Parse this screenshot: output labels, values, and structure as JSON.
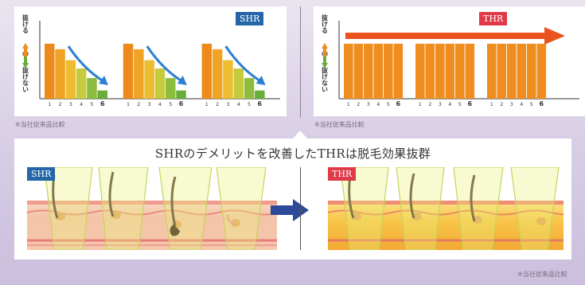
{
  "charts": [
    {
      "type": "bar",
      "label": "SHR",
      "label_color": "#2566a8",
      "y_top": "抜ける",
      "y_mid": "中",
      "y_bottom": "抜けない",
      "groups": [
        {
          "categories": [
            "1",
            "2",
            "3",
            "4",
            "5",
            "6"
          ],
          "values": [
            4,
            3.6,
            2.8,
            2.2,
            1.5,
            0.6
          ]
        },
        {
          "categories": [
            "1",
            "2",
            "3",
            "4",
            "5",
            "6"
          ],
          "values": [
            4,
            3.6,
            2.8,
            2.2,
            1.5,
            0.6
          ]
        },
        {
          "categories": [
            "1",
            "2",
            "3",
            "4",
            "5",
            "6"
          ],
          "values": [
            4,
            3.6,
            2.8,
            2.2,
            1.5,
            0.6
          ]
        }
      ],
      "colors": [
        "#ec8b1c",
        "#f0a325",
        "#edbc2f",
        "#c6cb3c",
        "#8ebd3d",
        "#6aad3a"
      ],
      "arrow_color": "#2d7fd2",
      "note": "※当社従来品比較"
    },
    {
      "type": "bar",
      "label": "THR",
      "label_color": "#e03a4a",
      "y_top": "抜ける",
      "y_mid": "中",
      "y_bottom": "抜けない",
      "groups": [
        {
          "categories": [
            "1",
            "2",
            "3",
            "4",
            "5",
            "6"
          ],
          "values": [
            4,
            4,
            4,
            4,
            4,
            4
          ]
        },
        {
          "categories": [
            "1",
            "2",
            "3",
            "4",
            "5",
            "6"
          ],
          "values": [
            4,
            4,
            4,
            4,
            4,
            4
          ]
        },
        {
          "categories": [
            "1",
            "2",
            "3",
            "4",
            "5",
            "6"
          ],
          "values": [
            4,
            4,
            4,
            4,
            4,
            4
          ]
        }
      ],
      "colors": [
        "#ef8d1f"
      ],
      "arrow_color": "#e9531d",
      "note": "※当社従来品比較"
    }
  ],
  "bottom": {
    "headline": "SHRのデメリットを改善したTHRは脱毛効果抜群",
    "left_label": "SHR",
    "right_label": "THR",
    "left_label_color": "#2566a8",
    "right_label_color": "#e03a4a",
    "arrow_color": "#2c4a99",
    "note": "※当社従来品比較"
  }
}
